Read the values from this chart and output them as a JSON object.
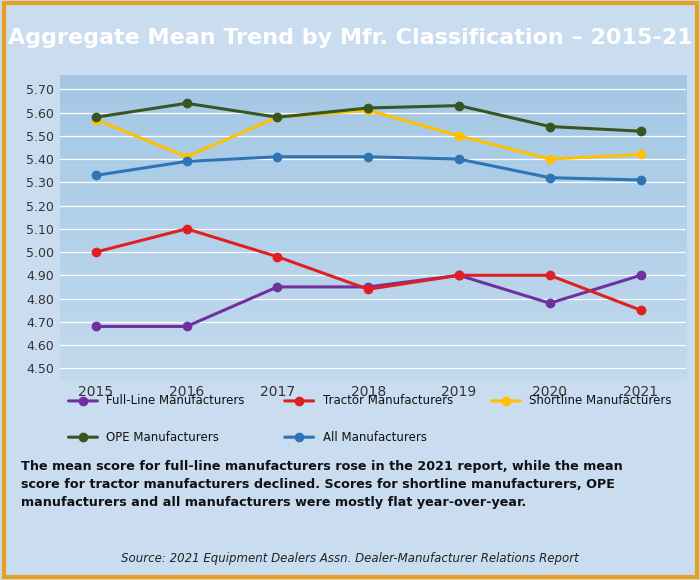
{
  "title": "Aggregate Mean Trend by Mfr. Classification – 2015-21",
  "title_bg": "#E8A020",
  "title_color": "white",
  "years": [
    2015,
    2016,
    2017,
    2018,
    2019,
    2020,
    2021
  ],
  "series": {
    "Full-Line Manufacturers": {
      "values": [
        4.68,
        4.68,
        4.85,
        4.85,
        4.9,
        4.78,
        4.9
      ],
      "color": "#7030A0",
      "marker": "o"
    },
    "Tractor Manufacturers": {
      "values": [
        5.0,
        5.1,
        4.98,
        4.84,
        4.9,
        4.9,
        4.75
      ],
      "color": "#E02020",
      "marker": "o"
    },
    "Shortline Manufacturers": {
      "values": [
        5.57,
        5.41,
        5.58,
        5.61,
        5.5,
        5.4,
        5.42
      ],
      "color": "#FFC000",
      "marker": "o"
    },
    "OPE Manufacturers": {
      "values": [
        5.58,
        5.64,
        5.58,
        5.62,
        5.63,
        5.54,
        5.52
      ],
      "color": "#375623",
      "marker": "o"
    },
    "All Manufacturers": {
      "values": [
        5.33,
        5.39,
        5.41,
        5.41,
        5.4,
        5.32,
        5.31
      ],
      "color": "#2E75B6",
      "marker": "o"
    }
  },
  "ylim": [
    4.45,
    5.76
  ],
  "yticks": [
    4.5,
    4.6,
    4.7,
    4.8,
    4.9,
    5.0,
    5.1,
    5.2,
    5.3,
    5.4,
    5.5,
    5.6,
    5.7
  ],
  "background_color": "#C9DCF0",
  "plot_bg_top": "#D6E8F8",
  "plot_bg_bottom": "#BFCFDF",
  "outer_border_color": "#E8A020",
  "caption": "The mean score for full-line manufacturers rose in the 2021 report, while the mean\nscore for tractor manufacturers declined. Scores for shortline manufacturers, OPE\nmanufacturers and all manufacturers were mostly flat year-over-year.",
  "source": "Source: 2021 Equipment Dealers Assn. Dealer-Manufacturer Relations Report",
  "legend_row1": [
    "Full-Line Manufacturers",
    "Tractor Manufacturers",
    "Shortline Manufacturers"
  ],
  "legend_row2": [
    "OPE Manufacturers",
    "All Manufacturers"
  ]
}
